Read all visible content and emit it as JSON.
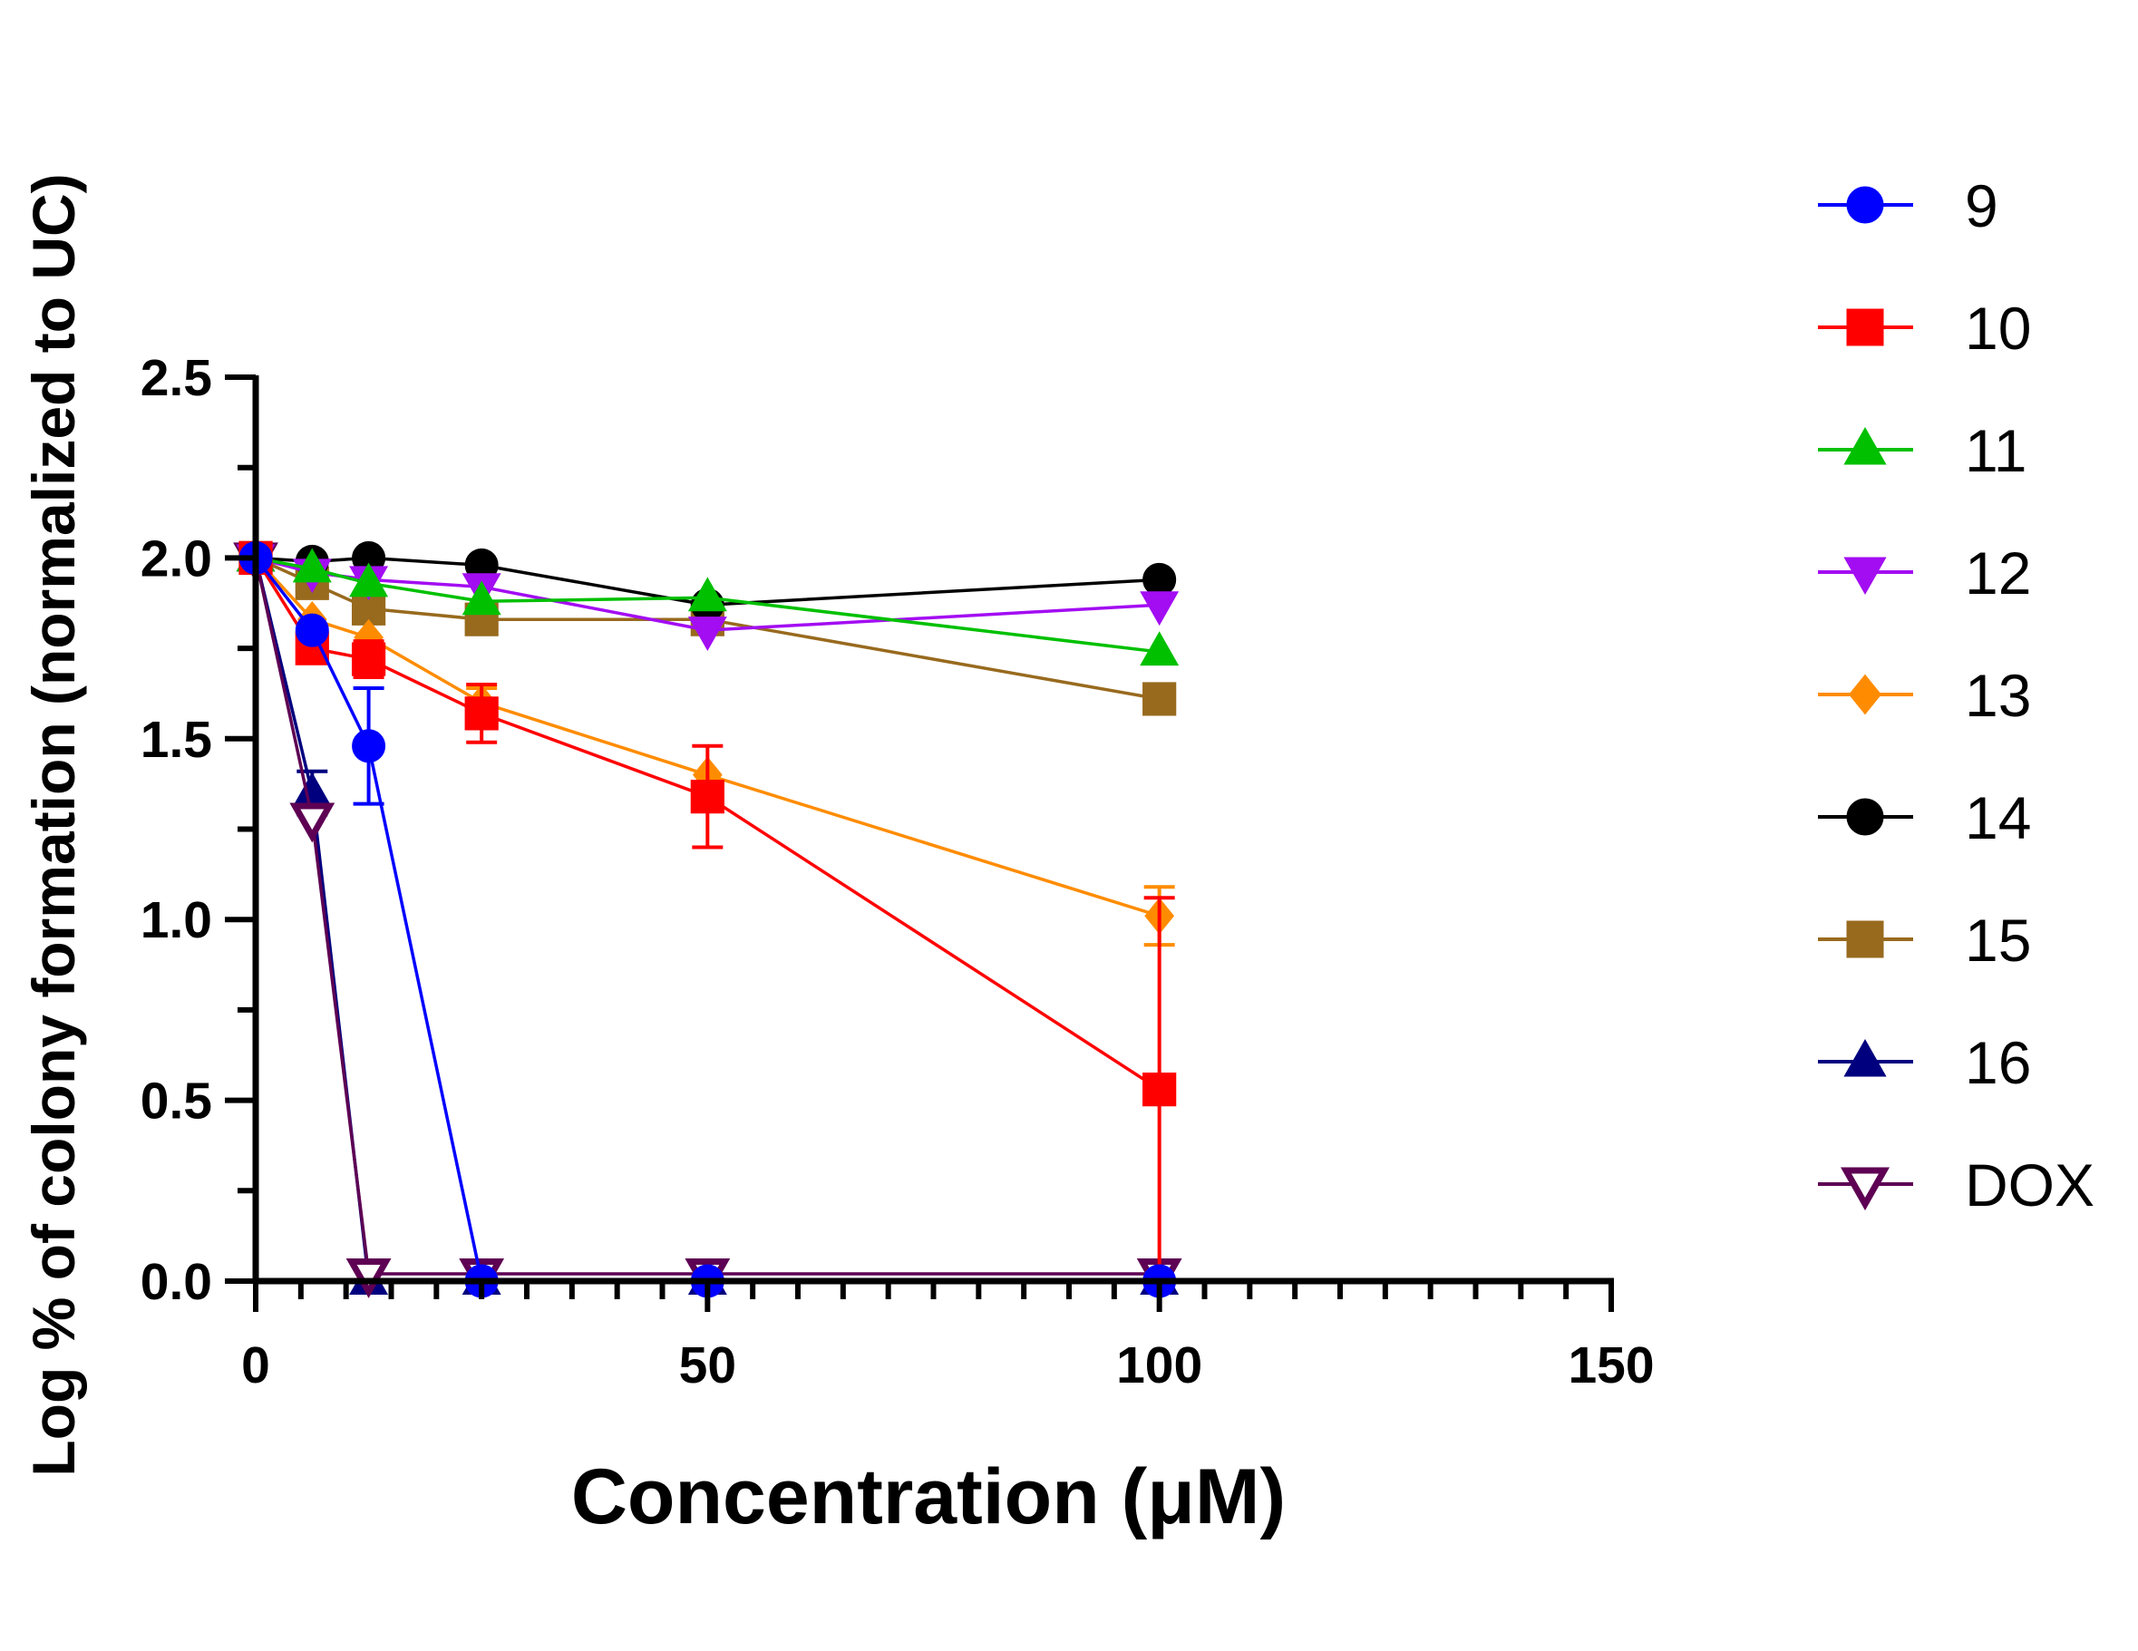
{
  "chart_data": {
    "type": "line",
    "title": "",
    "xlabel": "Concentration (μM)",
    "ylabel": "Log % of colony formation (normalized to UC)",
    "xlim": [
      0,
      150
    ],
    "ylim": [
      0,
      2.5
    ],
    "x_ticks": [
      0,
      50,
      100,
      150
    ],
    "x_tick_labels": [
      "0",
      "50",
      "100",
      "150"
    ],
    "y_ticks": [
      0,
      0.5,
      1.0,
      1.5,
      2.0,
      2.5
    ],
    "y_tick_labels": [
      "0.0",
      "0.5",
      "1.0",
      "1.5",
      "2.0",
      "2.5"
    ],
    "x_minor_step": 5,
    "y_minor_step": 0.25,
    "grid": false,
    "legend_position": "right",
    "x": [
      0,
      6.25,
      12.5,
      25,
      50,
      100
    ],
    "series": [
      {
        "name": "16",
        "color": "#00007F",
        "marker": "triangle-up",
        "filled": true,
        "values": [
          2.0,
          1.35,
          0,
          0,
          0,
          0
        ],
        "errors": [
          0,
          0.06,
          0,
          0,
          0,
          0
        ]
      },
      {
        "name": "DOX",
        "color": "#5E0053",
        "marker": "triangle-down",
        "filled": false,
        "values": [
          2.0,
          1.28,
          0.02,
          0.02,
          0.02,
          0.02
        ],
        "errors": [
          0,
          0,
          0,
          0,
          0,
          0
        ]
      },
      {
        "name": "15",
        "color": "#986A1E",
        "marker": "square",
        "filled": true,
        "values": [
          2.0,
          1.93,
          1.86,
          1.83,
          1.83,
          1.61
        ],
        "errors": [
          0,
          0,
          0,
          0,
          0,
          0
        ]
      },
      {
        "name": "14",
        "color": "#000000",
        "marker": "circle",
        "filled": true,
        "values": [
          2.0,
          1.99,
          2.0,
          1.98,
          1.87,
          1.94
        ],
        "errors": [
          0,
          0,
          0,
          0,
          0,
          0
        ]
      },
      {
        "name": "12",
        "color": "#A30DF2",
        "marker": "triangle-down",
        "filled": true,
        "values": [
          2.0,
          1.96,
          1.94,
          1.92,
          1.8,
          1.87
        ],
        "errors": [
          0,
          0,
          0,
          0,
          0,
          0
        ]
      },
      {
        "name": "11",
        "color": "#00C000",
        "marker": "triangle-up",
        "filled": true,
        "values": [
          2.0,
          1.97,
          1.93,
          1.88,
          1.89,
          1.74
        ],
        "errors": [
          0,
          0,
          0,
          0,
          0,
          0
        ]
      },
      {
        "name": "13",
        "color": "#FF8C00",
        "marker": "diamond",
        "filled": true,
        "values": [
          2.0,
          1.83,
          1.78,
          1.6,
          1.4,
          1.01
        ],
        "errors": [
          0,
          0,
          0,
          0.04,
          0,
          0.08
        ]
      },
      {
        "name": "10",
        "color": "#FF0000",
        "marker": "square",
        "filled": true,
        "values": [
          2.0,
          1.75,
          1.72,
          1.57,
          1.34,
          0.53
        ],
        "errors": [
          0,
          0,
          0.05,
          0.08,
          0.14,
          0.53
        ]
      },
      {
        "name": "9",
        "color": "#0000FF",
        "marker": "circle",
        "filled": true,
        "values": [
          2.0,
          1.8,
          1.48,
          0,
          0,
          0
        ],
        "errors": [
          0,
          0,
          0.16,
          0,
          0,
          0
        ]
      }
    ],
    "legend_order": [
      "9",
      "10",
      "11",
      "12",
      "13",
      "14",
      "15",
      "16",
      "DOX"
    ]
  }
}
